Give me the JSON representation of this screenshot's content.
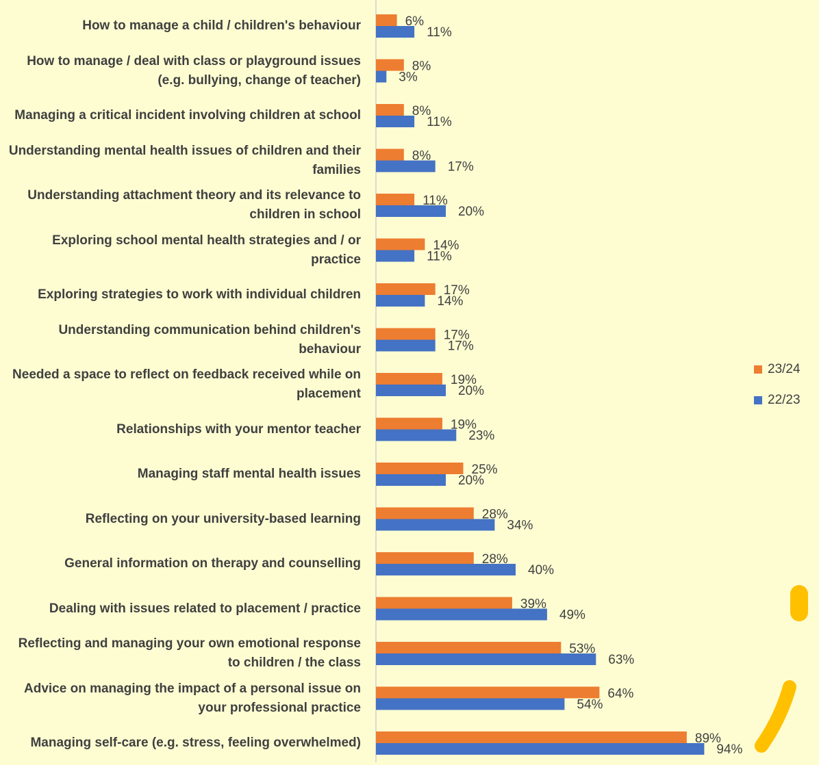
{
  "chart_data": {
    "type": "bar",
    "orientation": "horizontal",
    "categories": [
      "How to manage a child / children's behaviour",
      "How to manage / deal with class or playground issues (e.g. bullying, change of teacher)",
      "Managing a critical incident involving children at school",
      "Understanding mental health issues of children and their families",
      "Understanding attachment theory and its relevance to children in school",
      "Exploring school mental health strategies and / or practice",
      "Exploring strategies to work with individual children",
      "Understanding communication behind children's behaviour",
      "Needed a space to reflect on feedback received while on placement",
      "Relationships with your mentor teacher",
      "Managing staff mental health issues",
      "Reflecting on your university-based learning",
      "General information on therapy and counselling",
      "Dealing with issues related to placement / practice",
      "Reflecting and managing your own emotional response to children / the class",
      "Advice on managing the impact of a personal issue on your professional practice",
      "Managing self-care (e.g. stress, feeling overwhelmed)"
    ],
    "series": [
      {
        "name": "23/24",
        "color": "#ed7d31",
        "values": [
          6,
          8,
          8,
          8,
          11,
          14,
          17,
          17,
          19,
          19,
          25,
          28,
          28,
          39,
          53,
          64,
          89
        ],
        "value_labels": [
          "6%",
          "8%",
          "8%",
          "8%",
          "11%",
          "14%",
          "17%",
          "17%",
          "19%",
          "19%",
          "25%",
          "28%",
          "28%",
          "39%",
          "53%",
          "64%",
          "89%"
        ]
      },
      {
        "name": "22/23",
        "color": "#4472c4",
        "values": [
          11,
          3,
          11,
          17,
          20,
          11,
          14,
          17,
          20,
          23,
          20,
          34,
          40,
          49,
          63,
          54,
          94
        ],
        "value_labels": [
          "11%",
          "3%",
          "11%",
          "17%",
          "20%",
          "11%",
          "14%",
          "17%",
          "20%",
          "23%",
          "20%",
          "34%",
          "40%",
          "49%",
          "63%",
          "54%",
          "94%"
        ]
      }
    ],
    "legend": "right"
  }
}
